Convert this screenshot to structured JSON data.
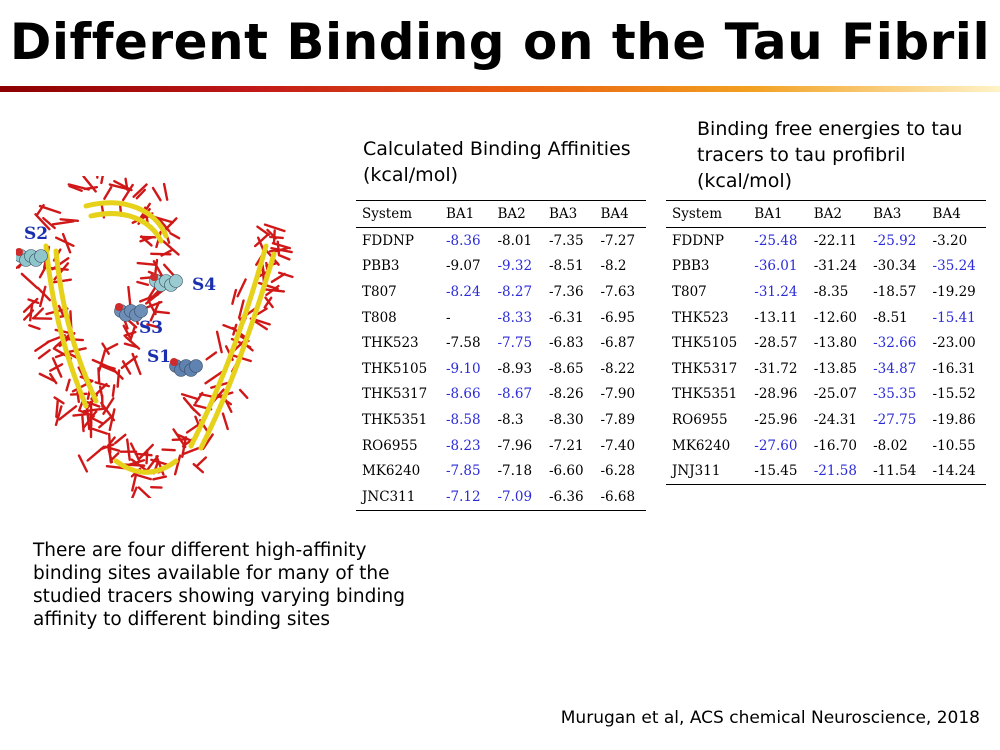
{
  "title": "Different Binding on the Tau Fibril",
  "colors": {
    "title_bar_start": "#8b0000",
    "title_bar_end": "#fff3c8",
    "highlight": "#2b2bd9",
    "site_label": "#1a2fb0",
    "fibril_atoms": "#d01818",
    "beta_sheet": "#e6d21a"
  },
  "figure": {
    "site_labels": [
      "S1",
      "S2",
      "S3",
      "S4"
    ]
  },
  "left_table": {
    "heading": "Calculated Binding Affinities (kcal/mol)",
    "columns": [
      "System",
      "BA1",
      "BA2",
      "BA3",
      "BA4"
    ],
    "rows": [
      {
        "cells": [
          "FDDNP",
          "-8.36",
          "-8.01",
          "-7.35",
          "-7.27"
        ],
        "highlight": [
          1
        ]
      },
      {
        "cells": [
          "PBB3",
          "-9.07",
          "-9.32",
          "-8.51",
          "-8.2"
        ],
        "highlight": [
          2
        ]
      },
      {
        "cells": [
          "T807",
          "-8.24",
          "-8.27",
          "-7.36",
          "-7.63"
        ],
        "highlight": [
          1,
          2
        ]
      },
      {
        "cells": [
          "T808",
          "-",
          "-8.33",
          "-6.31",
          "-6.95"
        ],
        "highlight": [
          2
        ]
      },
      {
        "cells": [
          "THK523",
          "-7.58",
          "-7.75",
          "-6.83",
          "-6.87"
        ],
        "highlight": [
          2
        ]
      },
      {
        "cells": [
          "THK5105",
          "-9.10",
          "-8.93",
          "-8.65",
          "-8.22"
        ],
        "highlight": [
          1
        ]
      },
      {
        "cells": [
          "THK5317",
          "-8.66",
          "-8.67",
          "-8.26",
          "-7.90"
        ],
        "highlight": [
          1,
          2
        ]
      },
      {
        "cells": [
          "THK5351",
          "-8.58",
          "-8.3",
          "-8.30",
          "-7.89"
        ],
        "highlight": [
          1
        ]
      },
      {
        "cells": [
          "RO6955",
          "-8.23",
          "-7.96",
          "-7.21",
          "-7.40"
        ],
        "highlight": [
          1
        ]
      },
      {
        "cells": [
          "MK6240",
          "-7.85",
          "-7.18",
          "-6.60",
          "-6.28"
        ],
        "highlight": [
          1
        ]
      },
      {
        "cells": [
          "JNC311",
          "-7.12",
          "-7.09",
          "-6.36",
          "-6.68"
        ],
        "highlight": [
          1,
          2
        ]
      }
    ]
  },
  "right_table": {
    "heading": "Binding free energies to tau tracers to tau profibril (kcal/mol)",
    "columns": [
      "System",
      "BA1",
      "BA2",
      "BA3",
      "BA4"
    ],
    "rows": [
      {
        "cells": [
          "FDDNP",
          "-25.48",
          "-22.11",
          "-25.92",
          "-3.20"
        ],
        "highlight": [
          1,
          3
        ]
      },
      {
        "cells": [
          "PBB3",
          "-36.01",
          "-31.24",
          "-30.34",
          "-35.24"
        ],
        "highlight": [
          1,
          4
        ]
      },
      {
        "cells": [
          "T807",
          "-31.24",
          "-8.35",
          "-18.57",
          "-19.29"
        ],
        "highlight": [
          1
        ]
      },
      {
        "cells": [
          "THK523",
          "-13.11",
          "-12.60",
          "-8.51",
          "-15.41"
        ],
        "highlight": [
          4
        ]
      },
      {
        "cells": [
          "THK5105",
          "-28.57",
          "-13.80",
          "-32.66",
          "-23.00"
        ],
        "highlight": [
          3
        ]
      },
      {
        "cells": [
          "THK5317",
          "-31.72",
          "-13.85",
          "-34.87",
          "-16.31"
        ],
        "highlight": [
          3
        ]
      },
      {
        "cells": [
          "THK5351",
          "-28.96",
          "-25.07",
          "-35.35",
          "-15.52"
        ],
        "highlight": [
          3
        ]
      },
      {
        "cells": [
          "RO6955",
          "-25.96",
          "-24.31",
          "-27.75",
          "-19.86"
        ],
        "highlight": [
          3
        ]
      },
      {
        "cells": [
          "MK6240",
          "-27.60",
          "-16.70",
          "-8.02",
          "-10.55"
        ],
        "highlight": [
          1
        ]
      },
      {
        "cells": [
          "JNJ311",
          "-15.45",
          "-21.58",
          "-11.54",
          "-14.24"
        ],
        "highlight": [
          2
        ]
      }
    ]
  },
  "note": "There are four different high-affinity binding sites available for many of the studied tracers showing varying binding affinity to different binding sites",
  "citation": "Murugan et al, ACS chemical Neuroscience, 2018"
}
